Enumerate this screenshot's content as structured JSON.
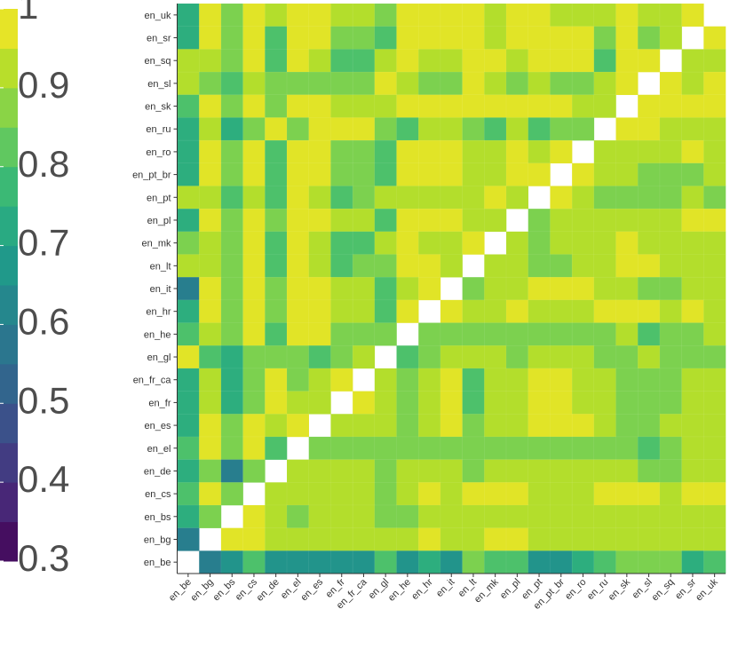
{
  "chart_data": {
    "type": "heatmap",
    "x_categories": [
      "en_be",
      "en_bg",
      "en_bs",
      "en_cs",
      "en_de",
      "en_el",
      "en_es",
      "en_fr",
      "en_fr_ca",
      "en_gl",
      "en_he",
      "en_hr",
      "en_it",
      "en_lt",
      "en_mk",
      "en_pl",
      "en_pt",
      "en_pt_br",
      "en_ro",
      "en_ru",
      "en_sk",
      "en_sl",
      "en_sq",
      "en_sr",
      "en_uk"
    ],
    "y_categories": [
      "en_uk",
      "en_sr",
      "en_sq",
      "en_sl",
      "en_sk",
      "en_ru",
      "en_ro",
      "en_pt_br",
      "en_pt",
      "en_pl",
      "en_mk",
      "en_lt",
      "en_it",
      "en_hr",
      "en_he",
      "en_gl",
      "en_fr_ca",
      "en_fr",
      "en_es",
      "en_el",
      "en_de",
      "en_cs",
      "en_bs",
      "en_bg",
      "en_be"
    ],
    "values": [
      [
        0.74,
        0.97,
        0.86,
        0.97,
        0.92,
        0.97,
        0.97,
        0.92,
        0.92,
        0.86,
        0.97,
        0.97,
        0.97,
        0.97,
        0.92,
        0.97,
        0.97,
        0.92,
        0.92,
        0.92,
        0.97,
        0.92,
        0.92,
        0.97,
        null
      ],
      [
        0.74,
        0.97,
        0.86,
        0.97,
        0.8,
        0.97,
        0.97,
        0.86,
        0.86,
        0.8,
        0.97,
        0.97,
        0.97,
        0.97,
        0.92,
        0.97,
        0.97,
        0.97,
        0.97,
        0.86,
        0.97,
        0.86,
        0.92,
        null,
        0.97
      ],
      [
        0.92,
        0.92,
        0.86,
        0.97,
        0.8,
        0.97,
        0.92,
        0.8,
        0.8,
        0.92,
        0.97,
        0.92,
        0.92,
        0.97,
        0.97,
        0.92,
        0.97,
        0.97,
        0.97,
        0.8,
        0.97,
        0.97,
        null,
        0.92,
        0.92
      ],
      [
        0.92,
        0.86,
        0.8,
        0.92,
        0.86,
        0.86,
        0.86,
        0.86,
        0.86,
        0.97,
        0.92,
        0.86,
        0.86,
        0.97,
        0.92,
        0.86,
        0.92,
        0.86,
        0.86,
        0.92,
        0.97,
        null,
        0.97,
        0.92,
        0.97
      ],
      [
        0.8,
        0.97,
        0.86,
        0.97,
        0.86,
        0.97,
        0.97,
        0.92,
        0.92,
        0.92,
        0.97,
        0.97,
        0.97,
        0.97,
        0.97,
        0.97,
        0.97,
        0.97,
        0.92,
        0.92,
        null,
        0.97,
        0.97,
        0.97,
        0.97
      ],
      [
        0.74,
        0.92,
        0.74,
        0.86,
        0.97,
        0.86,
        0.97,
        0.97,
        0.97,
        0.86,
        0.8,
        0.92,
        0.92,
        0.86,
        0.8,
        0.92,
        0.8,
        0.86,
        0.86,
        null,
        0.97,
        0.97,
        0.92,
        0.92,
        0.92
      ],
      [
        0.74,
        0.97,
        0.86,
        0.97,
        0.8,
        0.97,
        0.97,
        0.86,
        0.86,
        0.8,
        0.97,
        0.97,
        0.97,
        0.92,
        0.92,
        0.97,
        0.92,
        0.97,
        null,
        0.92,
        0.92,
        0.92,
        0.92,
        0.97,
        0.92
      ],
      [
        0.74,
        0.97,
        0.86,
        0.97,
        0.8,
        0.97,
        0.97,
        0.86,
        0.86,
        0.8,
        0.97,
        0.97,
        0.97,
        0.92,
        0.92,
        0.97,
        0.97,
        null,
        0.97,
        0.92,
        0.92,
        0.86,
        0.86,
        0.86,
        0.92
      ],
      [
        0.92,
        0.92,
        0.8,
        0.92,
        0.8,
        0.97,
        0.92,
        0.8,
        0.86,
        0.92,
        0.92,
        0.92,
        0.92,
        0.92,
        0.97,
        0.92,
        null,
        0.97,
        0.92,
        0.86,
        0.86,
        0.86,
        0.86,
        0.92,
        0.86
      ],
      [
        0.74,
        0.97,
        0.86,
        0.97,
        0.86,
        0.97,
        0.97,
        0.92,
        0.92,
        0.8,
        0.97,
        0.97,
        0.97,
        0.92,
        0.92,
        null,
        0.86,
        0.92,
        0.92,
        0.92,
        0.92,
        0.92,
        0.92,
        0.97,
        0.97
      ],
      [
        0.86,
        0.92,
        0.86,
        0.97,
        0.8,
        0.97,
        0.92,
        0.8,
        0.8,
        0.92,
        0.97,
        0.92,
        0.92,
        0.97,
        null,
        0.92,
        0.86,
        0.92,
        0.92,
        0.92,
        0.97,
        0.92,
        0.92,
        0.92,
        0.92
      ],
      [
        0.92,
        0.92,
        0.86,
        0.97,
        0.8,
        0.97,
        0.92,
        0.8,
        0.86,
        0.86,
        0.97,
        0.97,
        0.92,
        null,
        0.92,
        0.92,
        0.86,
        0.86,
        0.92,
        0.92,
        0.97,
        0.97,
        0.92,
        0.92,
        0.92
      ],
      [
        0.6,
        0.97,
        0.86,
        0.97,
        0.86,
        0.97,
        0.97,
        0.92,
        0.92,
        0.8,
        0.92,
        0.97,
        null,
        0.86,
        0.92,
        0.92,
        0.97,
        0.97,
        0.97,
        0.92,
        0.92,
        0.86,
        0.86,
        0.92,
        0.92
      ],
      [
        0.74,
        0.97,
        0.86,
        0.97,
        0.86,
        0.97,
        0.97,
        0.92,
        0.92,
        0.8,
        0.97,
        null,
        0.97,
        0.92,
        0.92,
        0.97,
        0.92,
        0.92,
        0.92,
        0.97,
        0.97,
        0.97,
        0.92,
        0.97,
        0.92
      ],
      [
        0.8,
        0.92,
        0.86,
        0.97,
        0.8,
        0.97,
        0.97,
        0.86,
        0.86,
        0.86,
        null,
        0.86,
        0.86,
        0.86,
        0.86,
        0.86,
        0.86,
        0.86,
        0.86,
        0.86,
        0.92,
        0.8,
        0.86,
        0.86,
        0.92
      ],
      [
        0.97,
        0.8,
        0.74,
        0.86,
        0.86,
        0.86,
        0.8,
        0.86,
        0.92,
        null,
        0.8,
        0.86,
        0.92,
        0.92,
        0.92,
        0.86,
        0.92,
        0.92,
        0.92,
        0.86,
        0.86,
        0.92,
        0.86,
        0.86,
        0.86
      ],
      [
        0.74,
        0.92,
        0.74,
        0.86,
        0.97,
        0.86,
        0.92,
        0.97,
        null,
        0.92,
        0.86,
        0.92,
        0.97,
        0.8,
        0.92,
        0.92,
        0.97,
        0.97,
        0.92,
        0.92,
        0.86,
        0.86,
        0.86,
        0.92,
        0.92
      ],
      [
        0.74,
        0.92,
        0.74,
        0.86,
        0.97,
        0.92,
        0.92,
        null,
        0.97,
        0.92,
        0.86,
        0.92,
        0.97,
        0.8,
        0.92,
        0.92,
        0.97,
        0.97,
        0.92,
        0.92,
        0.86,
        0.86,
        0.86,
        0.92,
        0.92
      ],
      [
        0.74,
        0.97,
        0.86,
        0.97,
        0.92,
        0.97,
        null,
        0.92,
        0.92,
        0.92,
        0.86,
        0.92,
        0.97,
        0.86,
        0.92,
        0.92,
        0.97,
        0.97,
        0.97,
        0.92,
        0.86,
        0.86,
        0.92,
        0.92,
        0.92
      ],
      [
        0.8,
        0.97,
        0.86,
        0.97,
        0.8,
        null,
        0.86,
        0.86,
        0.86,
        0.86,
        0.86,
        0.86,
        0.86,
        0.86,
        0.86,
        0.86,
        0.86,
        0.86,
        0.86,
        0.86,
        0.86,
        0.8,
        0.86,
        0.92,
        0.92
      ],
      [
        0.74,
        0.86,
        0.6,
        0.86,
        null,
        0.92,
        0.92,
        0.92,
        0.92,
        0.86,
        0.92,
        0.92,
        0.92,
        0.86,
        0.92,
        0.92,
        0.92,
        0.92,
        0.92,
        0.92,
        0.92,
        0.86,
        0.86,
        0.92,
        0.92
      ],
      [
        0.8,
        0.97,
        0.86,
        null,
        0.92,
        0.92,
        0.92,
        0.92,
        0.92,
        0.86,
        0.92,
        0.97,
        0.92,
        0.97,
        0.97,
        0.97,
        0.92,
        0.92,
        0.92,
        0.97,
        0.97,
        0.97,
        0.92,
        0.97,
        0.97
      ],
      [
        0.74,
        0.86,
        null,
        0.97,
        0.92,
        0.86,
        0.92,
        0.92,
        0.92,
        0.86,
        0.86,
        0.92,
        0.92,
        0.92,
        0.92,
        0.92,
        0.92,
        0.92,
        0.92,
        0.92,
        0.92,
        0.92,
        0.92,
        0.92,
        0.92
      ],
      [
        0.6,
        null,
        0.97,
        0.97,
        0.92,
        0.92,
        0.92,
        0.92,
        0.92,
        0.92,
        0.92,
        0.97,
        0.92,
        0.92,
        0.97,
        0.97,
        0.92,
        0.92,
        0.92,
        0.92,
        0.92,
        0.92,
        0.92,
        0.92,
        0.92
      ],
      [
        null,
        0.6,
        0.66,
        0.8,
        0.66,
        0.66,
        0.66,
        0.66,
        0.66,
        0.8,
        0.66,
        0.74,
        0.66,
        0.86,
        0.8,
        0.8,
        0.66,
        0.66,
        0.74,
        0.8,
        0.86,
        0.86,
        0.86,
        0.74,
        0.8
      ]
    ],
    "colormap": "viridis",
    "zlim": [
      0.3,
      1
    ],
    "zticks": [
      0.3,
      0.4,
      0.5,
      0.6,
      0.7,
      0.8,
      0.9,
      1
    ]
  }
}
